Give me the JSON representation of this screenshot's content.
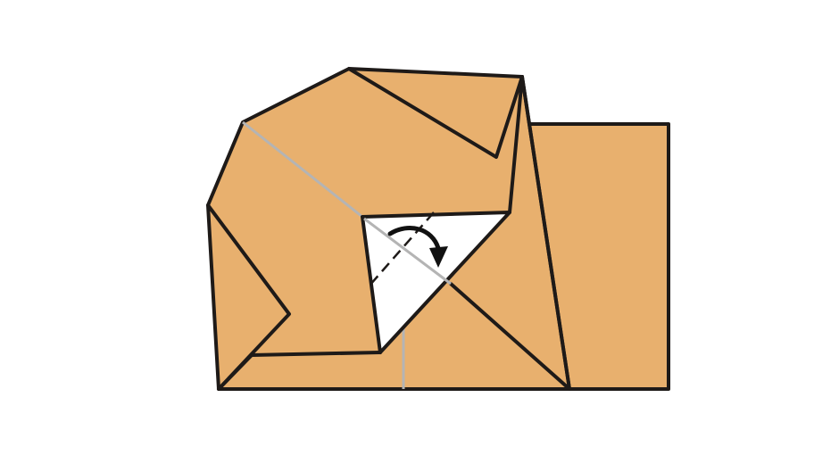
{
  "diagram": {
    "type": "origami-fold-instruction",
    "colors": {
      "background": "#ffffff",
      "paper_color": "#e8b06e",
      "paper_white_side": "#ffffff",
      "outline": "#1e1a18",
      "crease": "#b4b4b4",
      "arrow": "#111111"
    },
    "icons": {
      "fold_arrow": "curved-fold-arrow-icon"
    }
  }
}
